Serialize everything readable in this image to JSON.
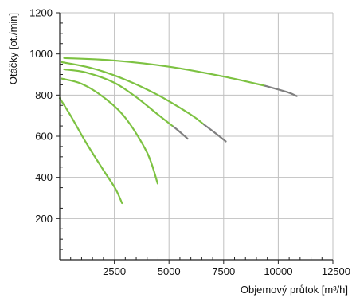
{
  "chart_data": {
    "type": "line",
    "title": "",
    "xlabel": "Objemový průtok [m³/h]",
    "ylabel": "Otáčky [ot./min]",
    "xlim": [
      0,
      12500
    ],
    "ylim": [
      0,
      1200
    ],
    "x_ticks": [
      2500,
      5000,
      7500,
      10000,
      12500
    ],
    "x_tick_labels": [
      "2500",
      "5000",
      "7500",
      "10000",
      "12500"
    ],
    "y_ticks": [
      200,
      400,
      600,
      800,
      1000,
      1200
    ],
    "y_tick_labels": [
      "200",
      "400",
      "600",
      "800",
      "1000",
      "1200"
    ],
    "grid": true,
    "legend": "none",
    "colors": {
      "curve": "#7dc242",
      "curve_end": "#808080",
      "grid": "#c0c0c0",
      "axis": "#222222"
    },
    "series": [
      {
        "x": [
          200,
          2500,
          5000,
          7500,
          9400,
          10400,
          10850
        ],
        "y": [
          980,
          968,
          938,
          890,
          845,
          815,
          795
        ],
        "gray_from_x": 9400
      },
      {
        "x": [
          100,
          1500,
          3000,
          4500,
          6000,
          7000,
          7600
        ],
        "y": [
          960,
          930,
          875,
          800,
          705,
          625,
          575
        ],
        "gray_from_x": 6600
      },
      {
        "x": [
          200,
          1200,
          2500,
          3500,
          4500,
          5400,
          5850
        ],
        "y": [
          925,
          910,
          860,
          790,
          705,
          630,
          588
        ],
        "gray_from_x": 5200
      },
      {
        "x": [
          100,
          1000,
          2000,
          3000,
          4000,
          4480
        ],
        "y": [
          880,
          855,
          790,
          690,
          520,
          370
        ],
        "gray_from_x": null
      },
      {
        "x": [
          0,
          500,
          1200,
          2000,
          2550,
          2850
        ],
        "y": [
          785,
          700,
          570,
          435,
          345,
          275
        ],
        "gray_from_x": null
      }
    ]
  }
}
